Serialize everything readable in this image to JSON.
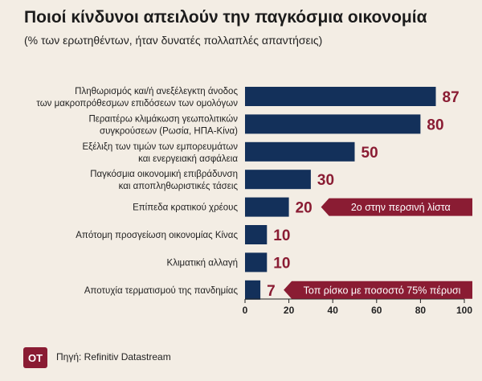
{
  "header": {
    "title": "Ποιοί κίνδυνοι απειλούν την παγκόσμια οικονομία",
    "subtitle": "(% των ερωτηθέντων, ήταν δυνατές πολλαπλές απαντήσεις)"
  },
  "footer": {
    "logo_text": "OT",
    "source": "Πηγή: Refinitiv Datastream"
  },
  "colors": {
    "bar": "#13305a",
    "value_label": "#8a1c33",
    "callout_bg": "#8a1c33",
    "background": "#f3ede4"
  },
  "chart_data": {
    "type": "bar",
    "orientation": "horizontal",
    "categories": [
      [
        "Πληθωρισμός και/ή ανεξέλεγκτη άνοδος",
        "των μακροπρόθεσμων επιδόσεων των ομολόγων"
      ],
      [
        "Περαιτέρω κλιμάκωση γεωπολιτικών",
        "συγκρούσεων (Ρωσία, ΗΠΑ-Κίνα)"
      ],
      [
        "Εξέλιξη των τιμών των εμπορευμάτων",
        "και ενεργειακή ασφάλεια"
      ],
      [
        "Παγκόσμια οικονομική επιβράδυνση",
        "και αποπληθωριστικές τάσεις"
      ],
      [
        "Επίπεδα κρατικού χρέους"
      ],
      [
        "Απότομη προσγείωση οικονομίας Κίνας"
      ],
      [
        "Κλιματική αλλαγή"
      ],
      [
        "Αποτυχία τερματισμού της πανδημίας"
      ]
    ],
    "values": [
      87,
      80,
      50,
      30,
      20,
      10,
      10,
      7
    ],
    "xlim": [
      0,
      100
    ],
    "xticks": [
      0,
      20,
      40,
      60,
      80,
      100
    ],
    "grid": false,
    "annotations": [
      {
        "category_index": 4,
        "text": "2ο στην περσινή λίστα"
      },
      {
        "category_index": 7,
        "text": "Τοπ ρίσκο με ποσοστό 75% πέρυσι"
      }
    ]
  }
}
